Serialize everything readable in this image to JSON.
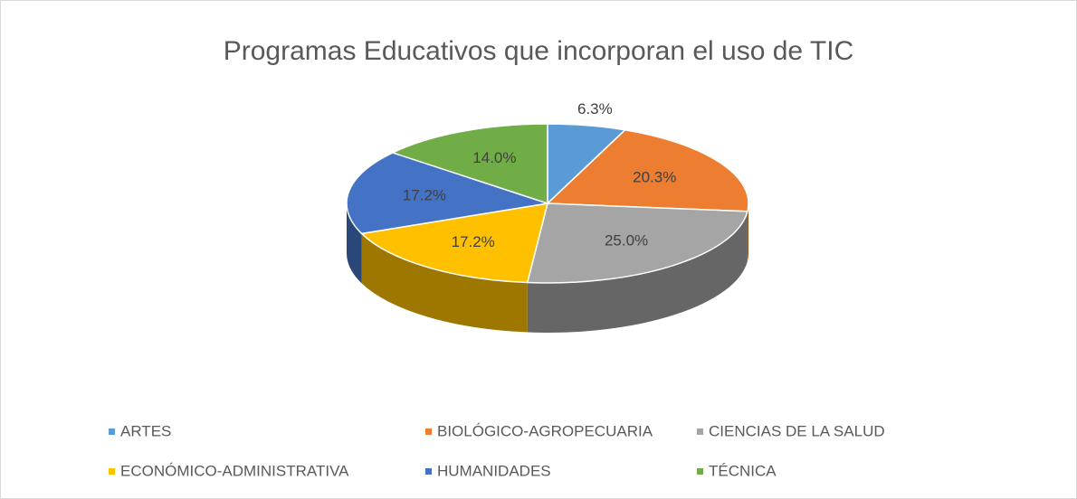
{
  "chart_data": {
    "type": "pie",
    "title": "Programas Educativos que incorporan el uso de TIC",
    "categories": [
      "ARTES",
      "BIOLÓGICO-AGROPECUARIA",
      "CIENCIAS DE LA SALUD",
      "ECONÓMICO-ADMINISTRATIVA",
      "HUMANIDADES",
      "TÉCNICA"
    ],
    "values": [
      6.3,
      20.3,
      25.0,
      17.2,
      17.2,
      14.0
    ],
    "value_labels": [
      "6.3%",
      "20.3%",
      "25.0%",
      "17.2%",
      "17.2%",
      "14.0%"
    ],
    "colors": [
      "#5b9bd5",
      "#ed7d31",
      "#a5a5a5",
      "#ffc000",
      "#4472c4",
      "#70ad47"
    ],
    "legend": "bottom"
  }
}
